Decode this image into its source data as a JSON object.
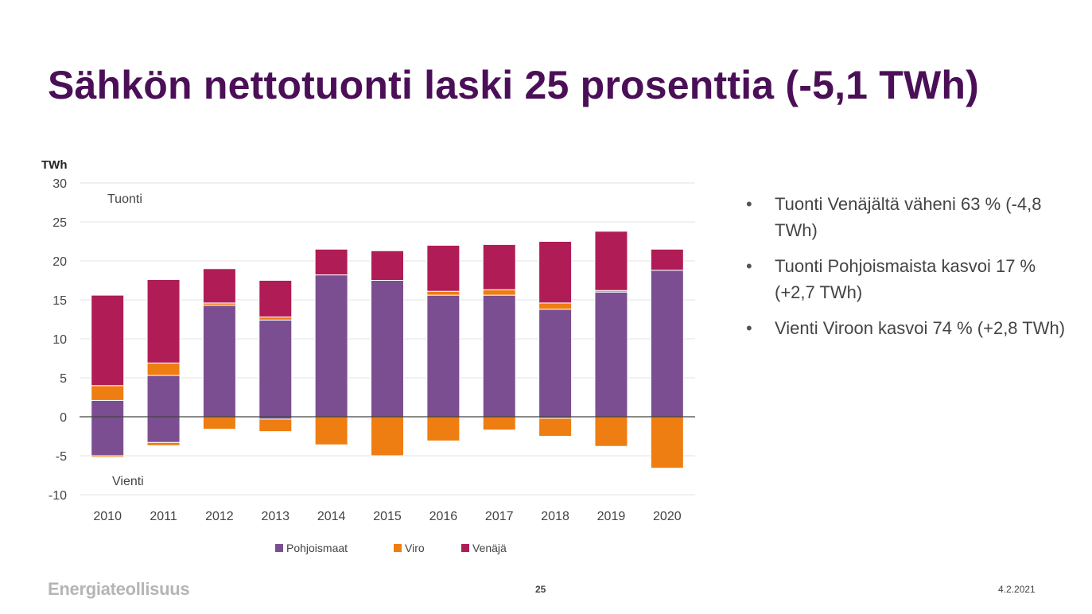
{
  "title": "Sähkön nettotuonti laski 25 prosenttia (-5,1 TWh)",
  "bullets": [
    "Tuonti Venäjältä väheni 63 % (-4,8 TWh)",
    "Tuonti Pohjoismaista kasvoi 17 % (+2,7 TWh)",
    "Vienti Viroon kasvoi 74 % (+2,8 TWh)"
  ],
  "footer": {
    "logo": "Energiateollisuus",
    "page": "25",
    "date": "4.2.2021"
  },
  "colors": {
    "title": "#4b0f57",
    "pohjoismaat": "#7b4e91",
    "viro": "#ee7d12",
    "venaja": "#b01c56"
  },
  "chart_data": {
    "type": "bar",
    "stacked": true,
    "ylabel": "TWh",
    "ylim": [
      -10,
      30
    ],
    "yticks": [
      -10,
      -5,
      0,
      5,
      10,
      15,
      20,
      25,
      30
    ],
    "annotations": [
      "Tuonti",
      "Vienti"
    ],
    "legend_position": "bottom",
    "categories": [
      "2010",
      "2011",
      "2012",
      "2013",
      "2014",
      "2015",
      "2016",
      "2017",
      "2018",
      "2019",
      "2020"
    ],
    "series": [
      {
        "name": "Pohjoismaat",
        "positive": [
          2.1,
          5.3,
          14.3,
          12.4,
          18.2,
          17.5,
          15.6,
          15.6,
          13.8,
          16.0,
          18.8
        ],
        "negative": [
          -5.0,
          -3.3,
          0,
          -0.3,
          0,
          0,
          0,
          0,
          -0.2,
          0,
          0
        ]
      },
      {
        "name": "Viro",
        "positive": [
          1.9,
          1.6,
          0.3,
          0.4,
          0,
          0,
          0.5,
          0.7,
          0.8,
          0.2,
          0
        ],
        "negative": [
          -0.2,
          -0.4,
          -1.6,
          -1.6,
          -3.6,
          -5.0,
          -3.1,
          -1.7,
          -2.3,
          -3.8,
          -6.6
        ]
      },
      {
        "name": "Venäjä",
        "positive": [
          11.6,
          10.7,
          4.4,
          4.7,
          3.3,
          3.8,
          5.9,
          5.8,
          7.9,
          7.6,
          2.7
        ],
        "negative": [
          0,
          0,
          0,
          0,
          0,
          0,
          0,
          0,
          0,
          0,
          0
        ]
      }
    ]
  }
}
